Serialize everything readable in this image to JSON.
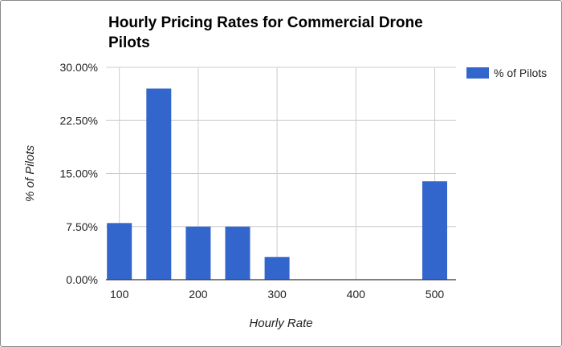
{
  "chart_data": {
    "type": "bar",
    "title": "Hourly Pricing Rates for Commercial Drone Pilots",
    "xlabel": "Hourly Rate",
    "ylabel": "% of Pilots",
    "x_ticks": [
      "100",
      "200",
      "300",
      "400",
      "500"
    ],
    "x_tick_values": [
      100,
      200,
      300,
      400,
      500
    ],
    "y_ticks": [
      "0.00%",
      "7.50%",
      "15.00%",
      "22.50%",
      "30.00%"
    ],
    "ylim": [
      0,
      30
    ],
    "xlim": [
      83,
      527
    ],
    "grid": true,
    "legend_position": "right",
    "series": [
      {
        "name": "% of Pilots",
        "color": "#3366cc",
        "x": [
          100,
          150,
          200,
          250,
          300,
          350,
          400,
          450,
          500
        ],
        "values": [
          8.0,
          27.0,
          7.5,
          7.5,
          3.2,
          0,
          0,
          0,
          13.9
        ]
      }
    ]
  }
}
